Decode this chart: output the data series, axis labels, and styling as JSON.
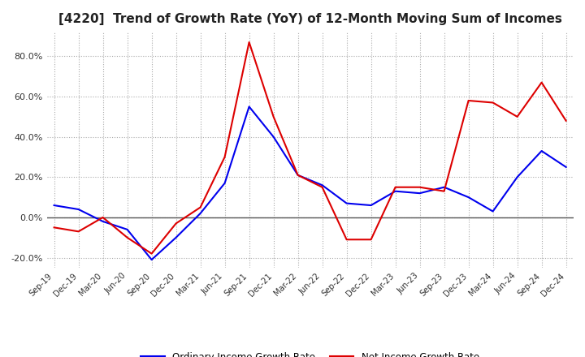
{
  "title": "[4220]  Trend of Growth Rate (YoY) of 12-Month Moving Sum of Incomes",
  "title_fontsize": 11,
  "ylim": [
    -25,
    92
  ],
  "yticks": [
    -20.0,
    0.0,
    20.0,
    40.0,
    60.0,
    80.0
  ],
  "background_color": "#ffffff",
  "grid_color": "#aaaaaa",
  "legend_labels": [
    "Ordinary Income Growth Rate",
    "Net Income Growth Rate"
  ],
  "line_colors": [
    "#0000ee",
    "#dd0000"
  ],
  "x_labels": [
    "Sep-19",
    "Dec-19",
    "Mar-20",
    "Jun-20",
    "Sep-20",
    "Dec-20",
    "Mar-21",
    "Jun-21",
    "Sep-21",
    "Dec-21",
    "Mar-22",
    "Jun-22",
    "Sep-22",
    "Dec-22",
    "Mar-23",
    "Jun-23",
    "Sep-23",
    "Dec-23",
    "Mar-24",
    "Jun-24",
    "Sep-24",
    "Dec-24"
  ],
  "ordinary_income": [
    6.0,
    4.0,
    -2.0,
    -6.0,
    -21.0,
    -10.0,
    2.0,
    17.0,
    55.0,
    40.0,
    21.0,
    16.0,
    7.0,
    6.0,
    13.0,
    12.0,
    15.0,
    10.0,
    3.0,
    20.0,
    33.0,
    25.0
  ],
  "net_income": [
    -5.0,
    -7.0,
    0.0,
    -10.0,
    -18.0,
    -3.0,
    5.0,
    30.0,
    87.0,
    50.0,
    21.0,
    15.0,
    -11.0,
    -11.0,
    15.0,
    15.0,
    13.0,
    58.0,
    57.0,
    50.0,
    67.0,
    48.0
  ]
}
